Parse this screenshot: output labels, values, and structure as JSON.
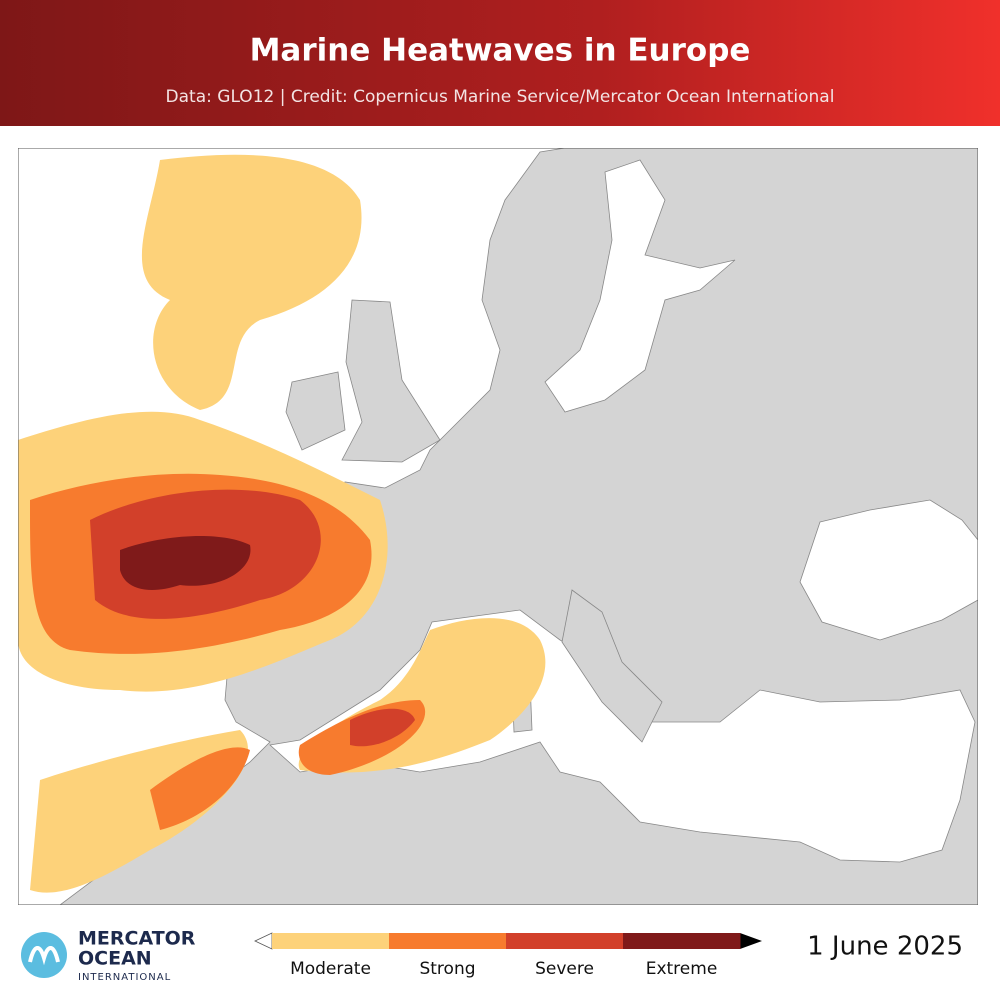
{
  "header": {
    "title": "Marine Heatwaves in Europe",
    "subtitle": "Data: GLO12 | Credit: Copernicus Marine Service/Mercator Ocean International"
  },
  "legend": {
    "categories": [
      {
        "label": "Moderate",
        "color": "#fdd27a"
      },
      {
        "label": "Strong",
        "color": "#f77b2e"
      },
      {
        "label": "Severe",
        "color": "#d2402a"
      },
      {
        "label": "Extreme",
        "color": "#7f1a1a"
      }
    ]
  },
  "date": "1 June 2025",
  "logo": {
    "line1": "MERCATOR",
    "line2": "OCEAN",
    "line3": "INTERNATIONAL"
  }
}
